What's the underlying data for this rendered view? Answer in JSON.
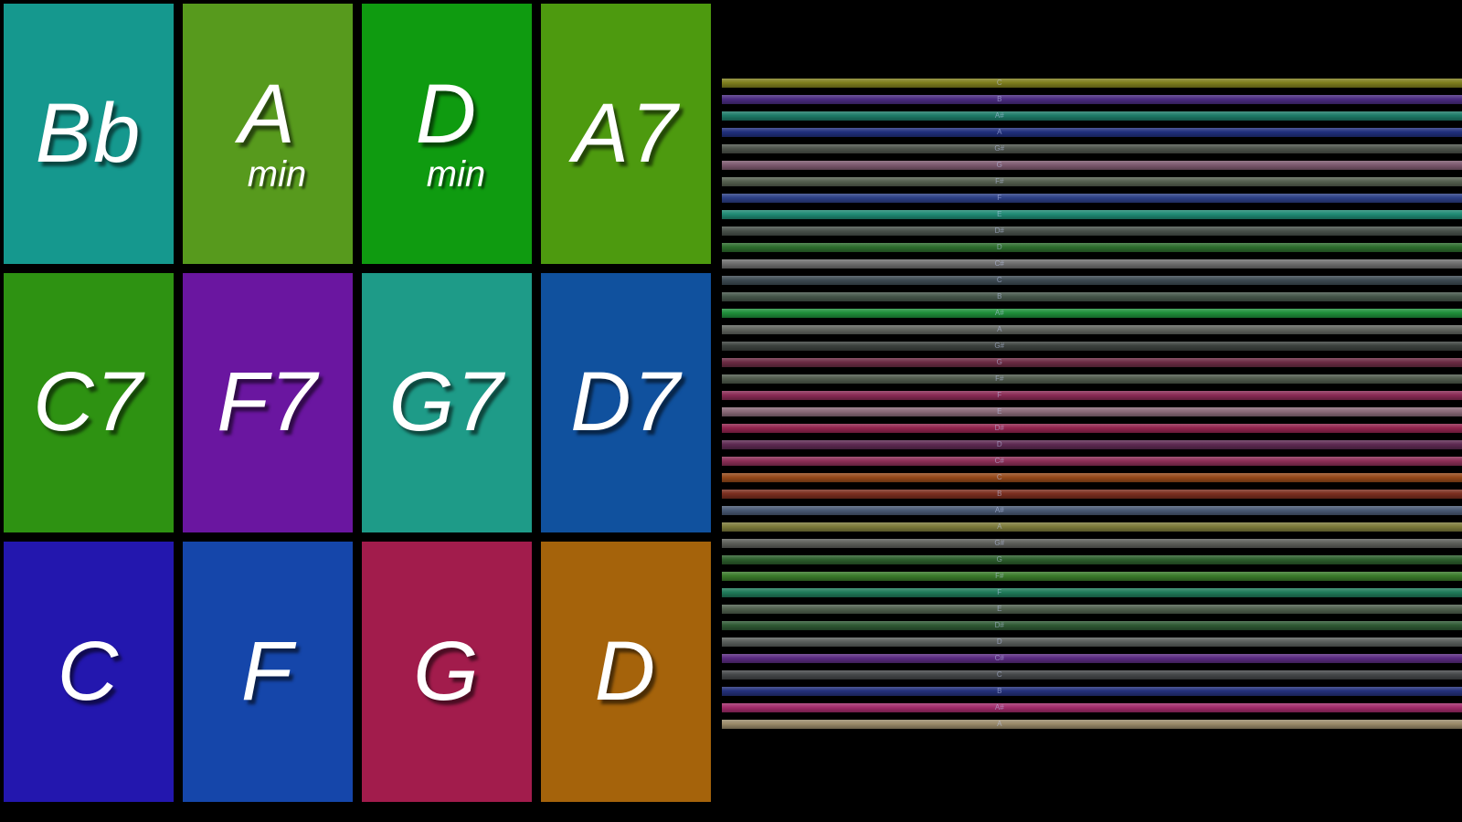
{
  "app": {
    "background": "#000000"
  },
  "chords": [
    {
      "label": "Bb",
      "sub": "",
      "color": "#15988e"
    },
    {
      "label": "A",
      "sub": "min",
      "color": "#579a1d"
    },
    {
      "label": "D",
      "sub": "min",
      "color": "#0f9b10"
    },
    {
      "label": "A7",
      "sub": "",
      "color": "#4d9a0f"
    },
    {
      "label": "C7",
      "sub": "",
      "color": "#2e9212"
    },
    {
      "label": "F7",
      "sub": "",
      "color": "#6a16a0"
    },
    {
      "label": "G7",
      "sub": "",
      "color": "#1e9b88"
    },
    {
      "label": "D7",
      "sub": "",
      "color": "#10519e"
    },
    {
      "label": "C",
      "sub": "",
      "color": "#2317ae"
    },
    {
      "label": "F",
      "sub": "",
      "color": "#1546aa"
    },
    {
      "label": "G",
      "sub": "",
      "color": "#a21c4c"
    },
    {
      "label": "D",
      "sub": "",
      "color": "#a5630b"
    }
  ],
  "strings": [
    {
      "note": "C",
      "color": "#7f7e1d"
    },
    {
      "note": "B",
      "color": "#4a2b80"
    },
    {
      "note": "A#",
      "color": "#1d7a68"
    },
    {
      "note": "A",
      "color": "#202f7d"
    },
    {
      "note": "G#",
      "color": "#4d534b"
    },
    {
      "note": "G",
      "color": "#7d5a6f"
    },
    {
      "note": "F#",
      "color": "#566050"
    },
    {
      "note": "F",
      "color": "#2c3f85"
    },
    {
      "note": "E",
      "color": "#1f8a74"
    },
    {
      "note": "D#",
      "color": "#49514b"
    },
    {
      "note": "D",
      "color": "#2c6b2c"
    },
    {
      "note": "C#",
      "color": "#6e6e6e"
    },
    {
      "note": "C",
      "color": "#3d4a52"
    },
    {
      "note": "B",
      "color": "#45564a"
    },
    {
      "note": "A#",
      "color": "#1f8f3a"
    },
    {
      "note": "A",
      "color": "#61655f"
    },
    {
      "note": "G#",
      "color": "#3c423e"
    },
    {
      "note": "G",
      "color": "#6b2b43"
    },
    {
      "note": "F#",
      "color": "#4f5a4c"
    },
    {
      "note": "F",
      "color": "#8a2b55"
    },
    {
      "note": "E",
      "color": "#8a6a78"
    },
    {
      "note": "D#",
      "color": "#92244e"
    },
    {
      "note": "D",
      "color": "#5e2a52"
    },
    {
      "note": "C#",
      "color": "#8c2f57"
    },
    {
      "note": "C",
      "color": "#94491a"
    },
    {
      "note": "B",
      "color": "#7a2e1f"
    },
    {
      "note": "A#",
      "color": "#4a5a74"
    },
    {
      "note": "A",
      "color": "#7c7a3a"
    },
    {
      "note": "G#",
      "color": "#5d5f5a"
    },
    {
      "note": "G",
      "color": "#2c5e2c"
    },
    {
      "note": "F#",
      "color": "#3a7a2a"
    },
    {
      "note": "F",
      "color": "#1f7a5a"
    },
    {
      "note": "E",
      "color": "#50604e"
    },
    {
      "note": "D#",
      "color": "#2f5a34"
    },
    {
      "note": "D",
      "color": "#5a5f5c"
    },
    {
      "note": "C#",
      "color": "#5a2b80"
    },
    {
      "note": "C",
      "color": "#45484a"
    },
    {
      "note": "B",
      "color": "#23307a"
    },
    {
      "note": "A#",
      "color": "#a12b6a"
    },
    {
      "note": "A",
      "color": "#9a8a6a"
    }
  ]
}
